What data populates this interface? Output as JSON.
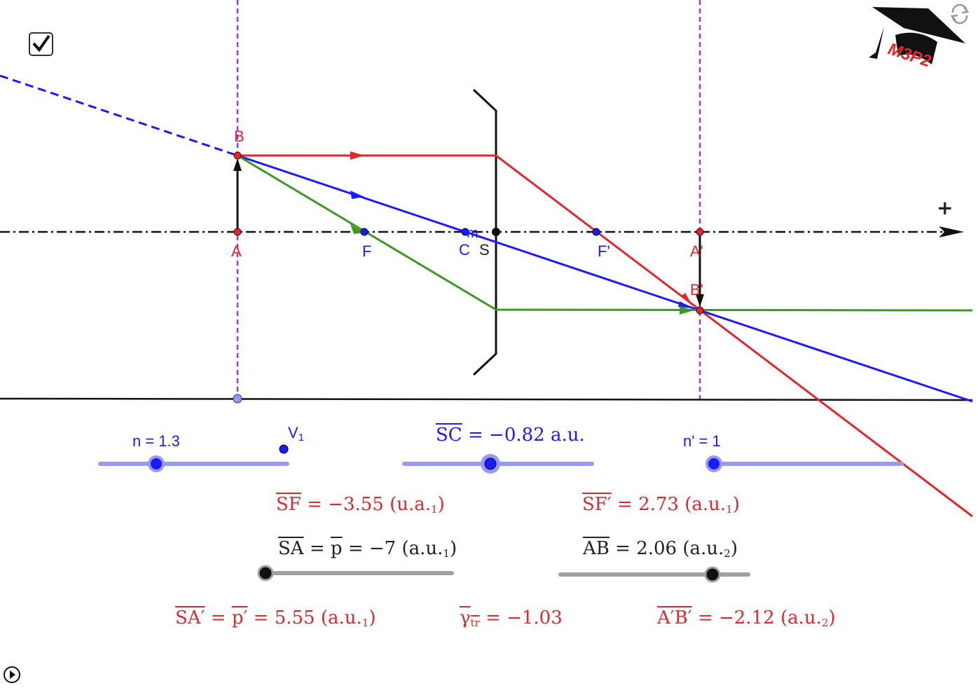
{
  "colors": {
    "red": "#e3262a",
    "blue": "#1a1aff",
    "green": "#3a9a22",
    "purple": "#8b3cf0",
    "slider": "#9898f5",
    "gray": "#a0a0a0"
  },
  "checkbox": {
    "checked": true,
    "icon": "check-icon"
  },
  "logo": {
    "text": "M3P2",
    "icon": "graduation-cap-icon"
  },
  "reset_icon": "refresh-icon",
  "play_icon": "play-icon",
  "points": {
    "A": "A",
    "B": "B",
    "F": "F",
    "C": "C",
    "m": "m",
    "S": "S",
    "Fp": "F'",
    "Ap": "A'",
    "Bp": "B'",
    "plus": "+",
    "V": "V",
    "V_sub": "1"
  },
  "sliders": {
    "n": {
      "label": "n = 1.3",
      "value": 1.3
    },
    "SC": {
      "over": "SC",
      "rest": " = −0.82 a.u.",
      "value": -0.82
    },
    "np": {
      "label": "n' = 1",
      "value": 1
    },
    "SA": {
      "over": "SA",
      "eq": " = ",
      "over2": "p",
      "rest": " = −7 (a.u.",
      "sub": "1",
      "close": ")",
      "value": -7
    },
    "AB": {
      "over": "AB",
      "rest": " =  2.06 (a.u.",
      "sub": "2",
      "close": ")",
      "value": 2.06
    }
  },
  "results": {
    "SF": {
      "over": "SF",
      "rest": " = −3.55 (u.a.",
      "sub": "1",
      "close": ")"
    },
    "SFp": {
      "over": "SF′",
      "rest": " = 2.73 (a.u.",
      "sub": "1",
      "close": ")"
    },
    "SAp": {
      "over": "SA′",
      "eq": " = ",
      "over2": "p′",
      "rest": " = 5.55 (a.u.",
      "sub": "1",
      "close": ")"
    },
    "gamma": {
      "over": "γ",
      "over_sub": "tr",
      "rest": " = −1.03"
    },
    "ApBp": {
      "over": "A′B′",
      "rest": " = −2.12 (a.u.",
      "sub": "2",
      "close": ")"
    }
  }
}
